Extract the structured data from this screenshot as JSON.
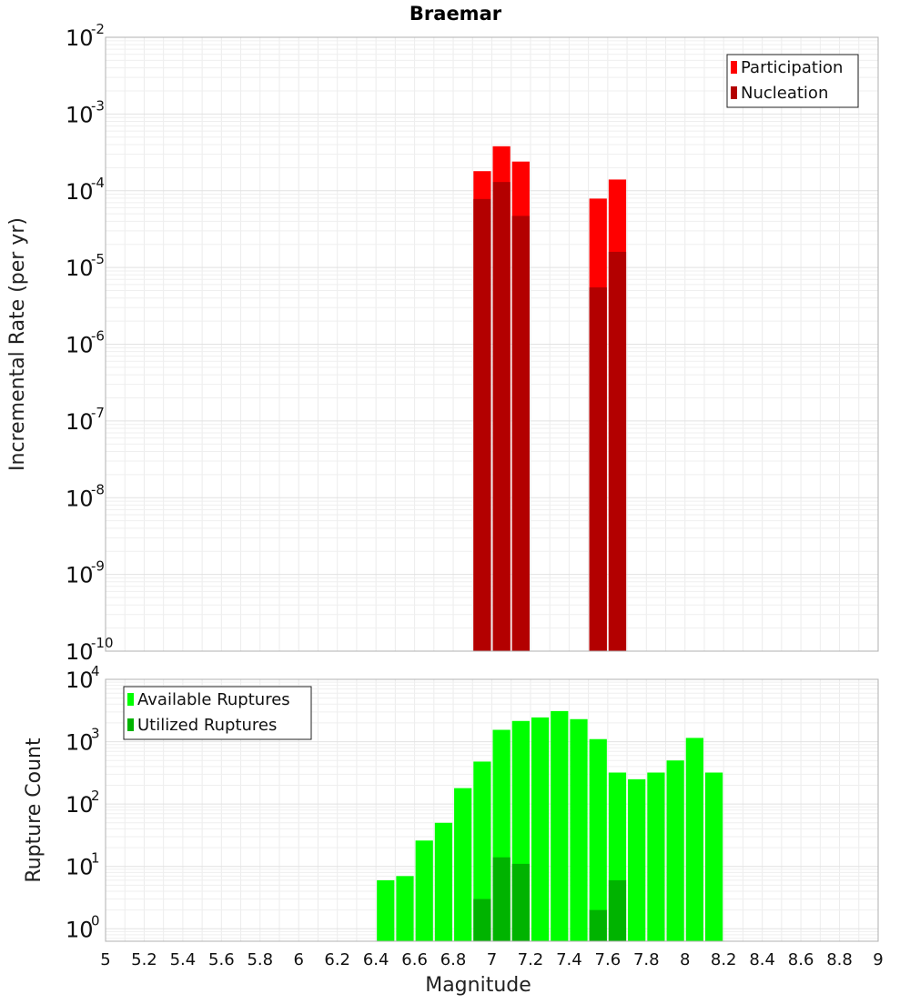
{
  "chart_data": [
    {
      "type": "bar",
      "title": "Braemar",
      "xlabel": "",
      "ylabel": "Incremental Rate (per yr)",
      "yscale": "log",
      "ylim_exponents": [
        -10,
        -2
      ],
      "y_tick_exponents": [
        -10,
        -9,
        -8,
        -7,
        -6,
        -5,
        -4,
        -3,
        -2
      ],
      "xlim": [
        5,
        9
      ],
      "bin_width": 0.1,
      "grid": true,
      "legend_position": "top-right",
      "series": [
        {
          "name": "Participation",
          "color": "#ff0000",
          "x": [
            6.95,
            7.05,
            7.15,
            7.55,
            7.65
          ],
          "values": [
            0.00018,
            0.00038,
            0.00024,
            7.9e-05,
            0.00014
          ]
        },
        {
          "name": "Nucleation",
          "color": "#b30000",
          "x": [
            6.95,
            7.05,
            7.15,
            7.55,
            7.65
          ],
          "values": [
            7.8e-05,
            0.00013,
            4.7e-05,
            5.5e-06,
            1.6e-05
          ]
        }
      ]
    },
    {
      "type": "bar",
      "title": "",
      "xlabel": "Magnitude",
      "ylabel": "Rupture Count",
      "yscale": "log",
      "ylim_exponents": [
        -0.2,
        4
      ],
      "y_tick_exponents": [
        0,
        1,
        2,
        3,
        4
      ],
      "xlim": [
        5,
        9
      ],
      "x_ticks": [
        "5",
        "5.2",
        "5.4",
        "5.6",
        "5.8",
        "6",
        "6.2",
        "6.4",
        "6.6",
        "6.8",
        "7",
        "7.2",
        "7.4",
        "7.6",
        "7.8",
        "8",
        "8.2",
        "8.4",
        "8.6",
        "8.8",
        "9"
      ],
      "bin_width": 0.1,
      "grid": true,
      "legend_position": "top-left",
      "series": [
        {
          "name": "Available Ruptures",
          "color": "#00ff00",
          "x": [
            6.45,
            6.55,
            6.65,
            6.75,
            6.85,
            6.95,
            7.05,
            7.15,
            7.25,
            7.35,
            7.45,
            7.55,
            7.65,
            7.75,
            7.85,
            7.95,
            8.05,
            8.15
          ],
          "values": [
            6,
            7,
            26,
            50,
            180,
            480,
            1550,
            2150,
            2450,
            3100,
            2300,
            1100,
            320,
            250,
            320,
            500,
            1150,
            320
          ]
        },
        {
          "name": "Utilized Ruptures",
          "color": "#00b300",
          "x": [
            6.95,
            7.05,
            7.15,
            7.55,
            7.65
          ],
          "values": [
            3,
            14,
            11,
            2,
            6
          ]
        }
      ]
    }
  ]
}
